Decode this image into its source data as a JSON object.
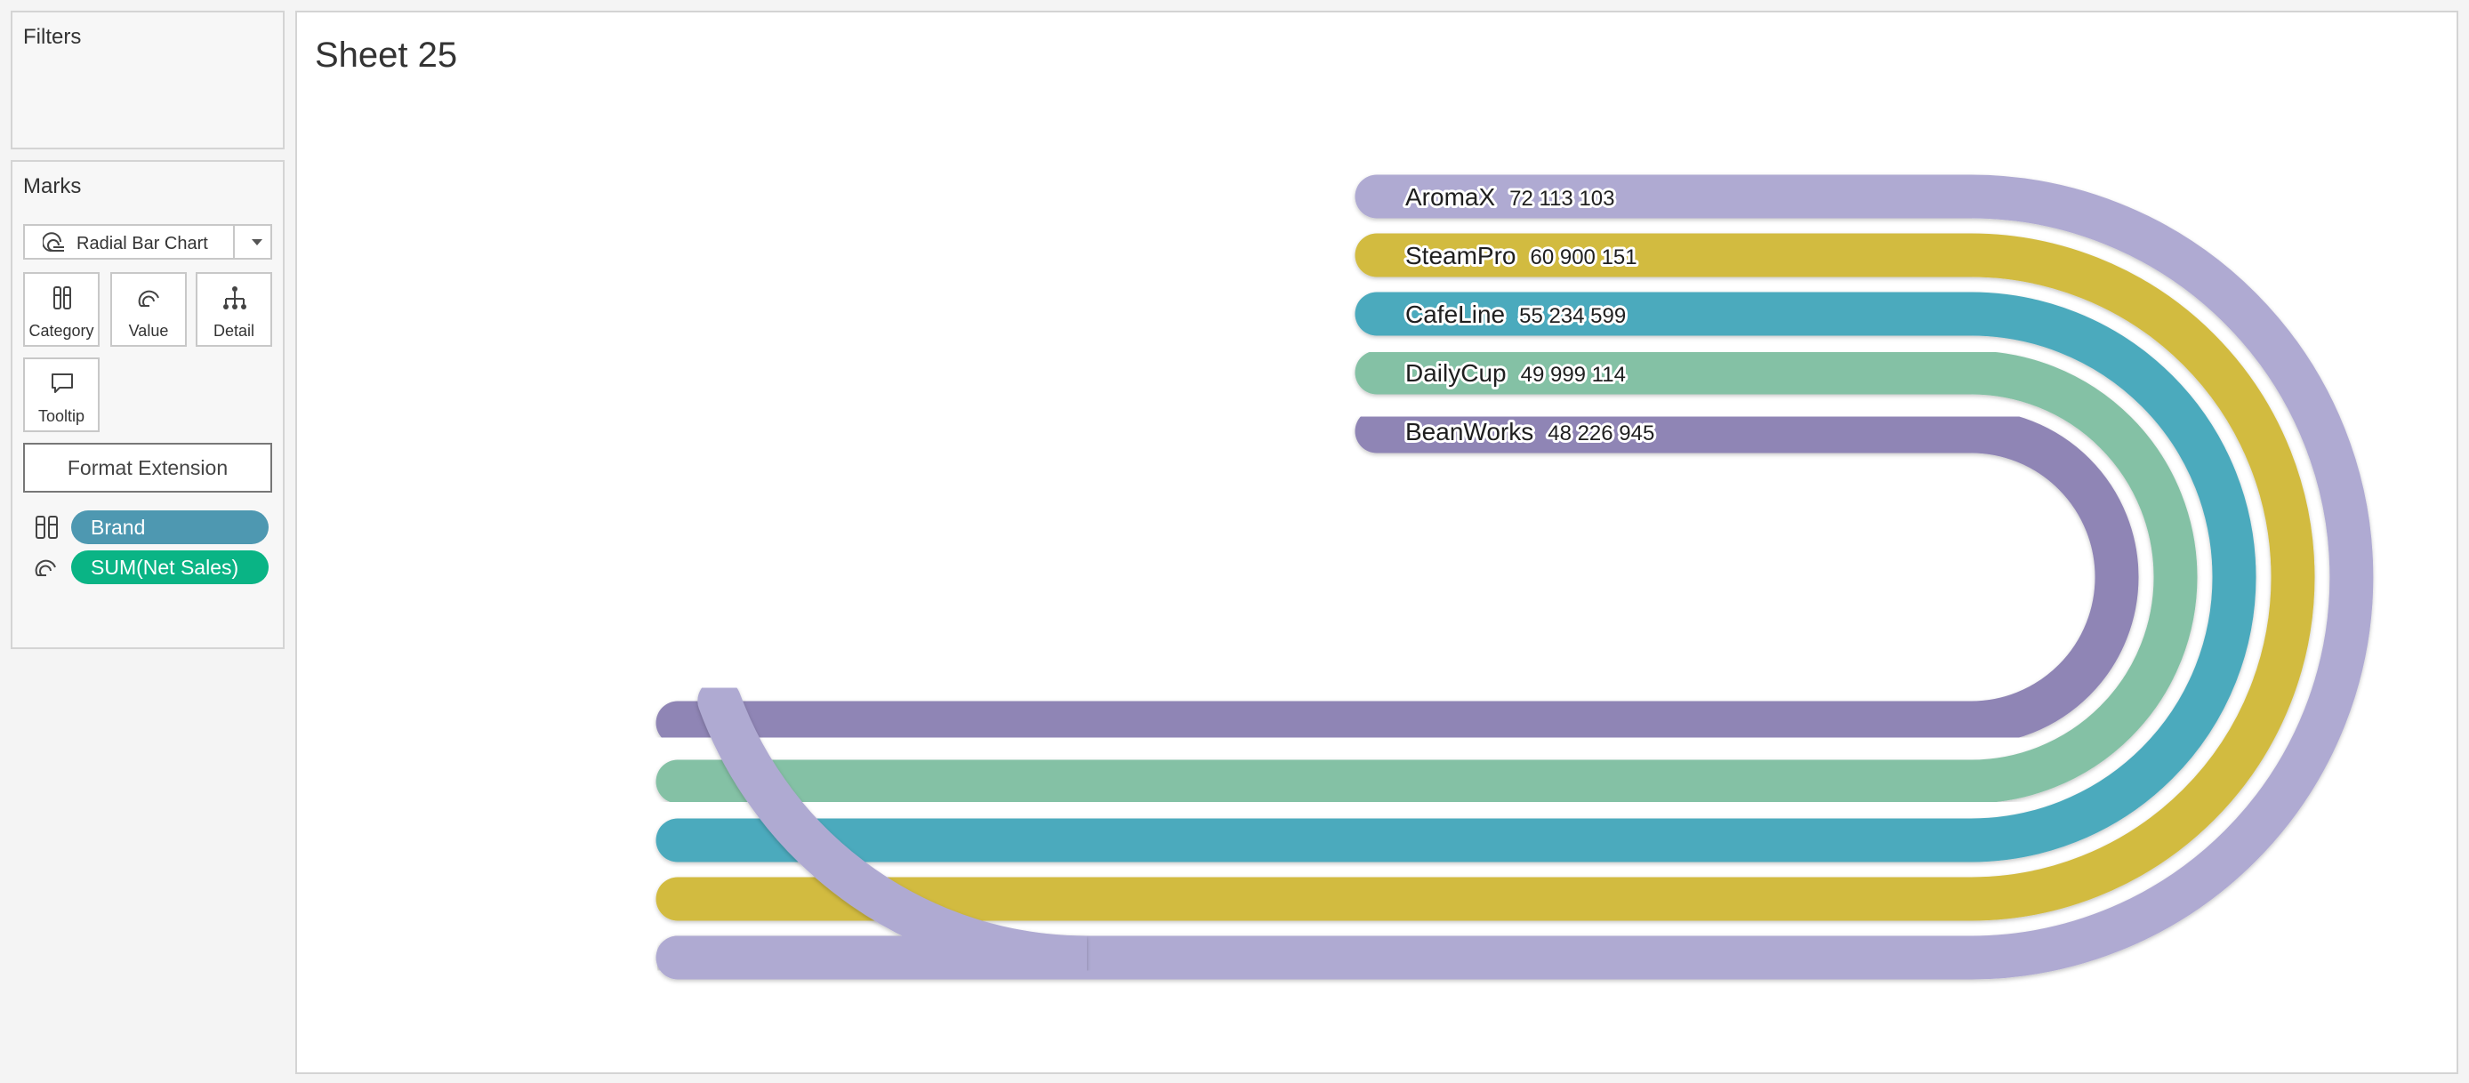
{
  "filters": {
    "title": "Filters"
  },
  "marks": {
    "title": "Marks",
    "mark_type": "Radial Bar Chart",
    "buttons": {
      "category": "Category",
      "value": "Value",
      "detail": "Detail",
      "tooltip": "Tooltip"
    },
    "format_extension": "Format Extension",
    "pills": [
      {
        "label": "Brand",
        "color": "#4e98b1",
        "icon": "category-icon"
      },
      {
        "label": "SUM(Net Sales)",
        "color": "#0ab485",
        "icon": "value-icon"
      }
    ]
  },
  "sheet": {
    "title": "Sheet 25"
  },
  "chart_data": {
    "type": "radial bar",
    "categories": [
      "AromaX",
      "SteamPro",
      "CafeLine",
      "DailyCup",
      "BeanWorks"
    ],
    "values": [
      72113103,
      60900151,
      55234599,
      49999114,
      48226945
    ],
    "value_labels": [
      "72 113 103",
      "60 900 151",
      "55 234 599",
      "49 999 114",
      "48 226 945"
    ],
    "colors": [
      "#afaad2",
      "#d2bb40",
      "#4baabd",
      "#84c1a5",
      "#8f85b5"
    ]
  }
}
